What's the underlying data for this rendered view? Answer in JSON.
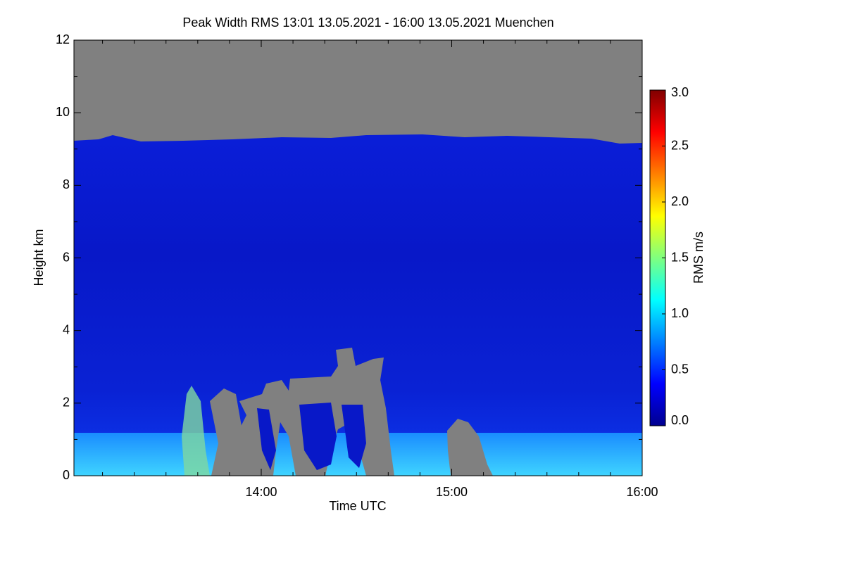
{
  "chart_data": {
    "type": "heatmap",
    "title": "Peak Width RMS   13:01 13.05.2021 - 16:00 13.05.2021 Muenchen",
    "x_label": "Time UTC",
    "y_label": "Height km",
    "xlim": [
      "13:01",
      "16:00"
    ],
    "xticks": [
      "14:00",
      "15:00",
      "16:00"
    ],
    "ylim": [
      0,
      12
    ],
    "yticks": [
      0,
      2,
      4,
      6,
      8,
      10,
      12
    ],
    "colorbar": {
      "label": "RMS m/s",
      "lim": [
        0,
        3
      ],
      "ticks": [
        {
          "value": 0,
          "label": "0.0"
        },
        {
          "value": 0.5,
          "label": "0.5"
        },
        {
          "value": 1,
          "label": "1.0"
        },
        {
          "value": 1.5,
          "label": "1.5"
        },
        {
          "value": 2,
          "label": "2.0"
        },
        {
          "value": 2.5,
          "label": "2.5"
        },
        {
          "value": 3,
          "label": "3.0"
        }
      ]
    }
  }
}
